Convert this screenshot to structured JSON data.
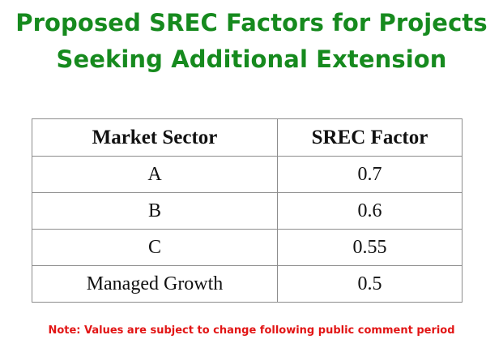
{
  "title": {
    "line1": "Proposed SREC Factors for Projects",
    "line2": "Seeking Additional Extension"
  },
  "table": {
    "headers": {
      "sector": "Market Sector",
      "factor": "SREC Factor"
    },
    "rows": [
      {
        "sector": "A",
        "factor": "0.7"
      },
      {
        "sector": "B",
        "factor": "0.6"
      },
      {
        "sector": "C",
        "factor": "0.55"
      },
      {
        "sector": "Managed Growth",
        "factor": "0.5"
      }
    ]
  },
  "note": "Note: Values are subject to change following public comment period",
  "colors": {
    "title": "#168a1e",
    "note": "#e21515",
    "table_border": "#8c8c8c"
  }
}
